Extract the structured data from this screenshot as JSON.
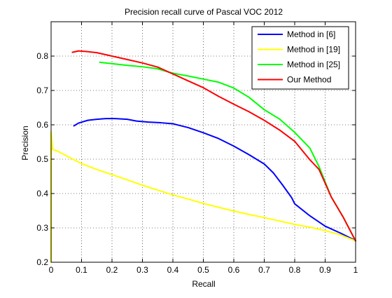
{
  "chart_data": {
    "type": "line",
    "title": "Precision recall curve of Pascal VOC 2012",
    "xlabel": "Recall",
    "ylabel": "Precision",
    "xlim": [
      0,
      1
    ],
    "ylim": [
      0.2,
      0.9
    ],
    "x_ticks": [
      0,
      0.1,
      0.2,
      0.3,
      0.4,
      0.5,
      0.6,
      0.7,
      0.8,
      0.9,
      1
    ],
    "x_tick_labels": [
      "0",
      "0.1",
      "0.2",
      "0.3",
      "0.4",
      "0.5",
      "0.6",
      "0.7",
      "0.8",
      "0.9",
      "1"
    ],
    "y_ticks": [
      0.2,
      0.3,
      0.4,
      0.5,
      0.6,
      0.7,
      0.8
    ],
    "y_tick_labels": [
      "0.2",
      "0.3",
      "0.4",
      "0.5",
      "0.6",
      "0.7",
      "0.8"
    ],
    "grid": true,
    "legend_position": "top-right",
    "series": [
      {
        "name": "Method in [6]",
        "color": "#0000ff",
        "points": [
          [
            0.075,
            0.597
          ],
          [
            0.09,
            0.605
          ],
          [
            0.12,
            0.613
          ],
          [
            0.15,
            0.616
          ],
          [
            0.18,
            0.618
          ],
          [
            0.21,
            0.618
          ],
          [
            0.25,
            0.616
          ],
          [
            0.28,
            0.611
          ],
          [
            0.32,
            0.608
          ],
          [
            0.36,
            0.606
          ],
          [
            0.4,
            0.603
          ],
          [
            0.45,
            0.592
          ],
          [
            0.5,
            0.577
          ],
          [
            0.55,
            0.56
          ],
          [
            0.6,
            0.538
          ],
          [
            0.65,
            0.513
          ],
          [
            0.7,
            0.486
          ],
          [
            0.73,
            0.46
          ],
          [
            0.76,
            0.425
          ],
          [
            0.79,
            0.388
          ],
          [
            0.8,
            0.37
          ],
          [
            0.85,
            0.335
          ],
          [
            0.9,
            0.305
          ],
          [
            0.95,
            0.285
          ],
          [
            1.0,
            0.263
          ]
        ]
      },
      {
        "name": "Method in [19]",
        "color": "#ffff00",
        "points": [
          [
            0.0,
            0.2
          ],
          [
            0.0,
            0.58
          ],
          [
            0.005,
            0.528
          ],
          [
            0.02,
            0.524
          ],
          [
            0.05,
            0.51
          ],
          [
            0.1,
            0.487
          ],
          [
            0.15,
            0.47
          ],
          [
            0.2,
            0.455
          ],
          [
            0.25,
            0.44
          ],
          [
            0.3,
            0.424
          ],
          [
            0.35,
            0.41
          ],
          [
            0.4,
            0.396
          ],
          [
            0.45,
            0.384
          ],
          [
            0.5,
            0.371
          ],
          [
            0.55,
            0.36
          ],
          [
            0.6,
            0.349
          ],
          [
            0.65,
            0.339
          ],
          [
            0.7,
            0.33
          ],
          [
            0.75,
            0.32
          ],
          [
            0.8,
            0.31
          ],
          [
            0.85,
            0.302
          ],
          [
            0.9,
            0.292
          ],
          [
            0.95,
            0.28
          ],
          [
            1.0,
            0.262
          ]
        ]
      },
      {
        "name": "Method in [25]",
        "color": "#00ff00",
        "points": [
          [
            0.16,
            0.782
          ],
          [
            0.2,
            0.778
          ],
          [
            0.25,
            0.773
          ],
          [
            0.3,
            0.769
          ],
          [
            0.35,
            0.763
          ],
          [
            0.4,
            0.75
          ],
          [
            0.45,
            0.742
          ],
          [
            0.5,
            0.733
          ],
          [
            0.55,
            0.724
          ],
          [
            0.6,
            0.707
          ],
          [
            0.65,
            0.68
          ],
          [
            0.7,
            0.644
          ],
          [
            0.75,
            0.617
          ],
          [
            0.8,
            0.578
          ],
          [
            0.85,
            0.532
          ],
          [
            0.88,
            0.478
          ],
          [
            0.92,
            0.39
          ],
          [
            0.96,
            0.33
          ],
          [
            1.0,
            0.262
          ]
        ]
      },
      {
        "name": "Our Method",
        "color": "#ff0000",
        "points": [
          [
            0.07,
            0.811
          ],
          [
            0.09,
            0.815
          ],
          [
            0.12,
            0.813
          ],
          [
            0.15,
            0.81
          ],
          [
            0.2,
            0.8
          ],
          [
            0.25,
            0.79
          ],
          [
            0.3,
            0.78
          ],
          [
            0.35,
            0.768
          ],
          [
            0.4,
            0.748
          ],
          [
            0.45,
            0.728
          ],
          [
            0.5,
            0.708
          ],
          [
            0.55,
            0.683
          ],
          [
            0.6,
            0.66
          ],
          [
            0.65,
            0.638
          ],
          [
            0.7,
            0.613
          ],
          [
            0.75,
            0.585
          ],
          [
            0.8,
            0.552
          ],
          [
            0.85,
            0.498
          ],
          [
            0.88,
            0.47
          ],
          [
            0.92,
            0.39
          ],
          [
            0.96,
            0.33
          ],
          [
            1.0,
            0.262
          ]
        ]
      }
    ]
  }
}
